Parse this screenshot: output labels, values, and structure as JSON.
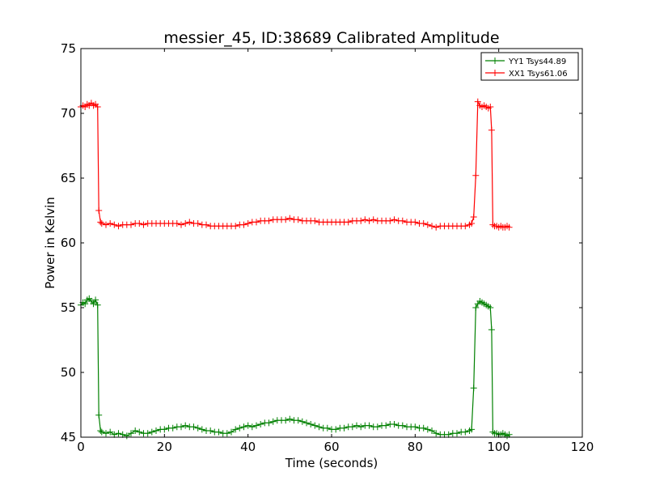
{
  "chart_data": {
    "type": "line",
    "title": "messier_45, ID:38689 Calibrated Amplitude",
    "xlabel": "Time (seconds)",
    "ylabel": "Power in Kelvin",
    "xlim": [
      0,
      120
    ],
    "ylim": [
      45,
      75
    ],
    "xticks": [
      0,
      20,
      40,
      60,
      80,
      100,
      120
    ],
    "yticks": [
      45,
      50,
      55,
      60,
      65,
      70,
      75
    ],
    "grid": false,
    "legend_position": "top-right",
    "marker": "+",
    "series": [
      {
        "name": "YY1 Tsys44.89",
        "color": "#008000",
        "x": [
          0,
          0.5,
          1,
          1.5,
          2,
          2.5,
          3,
          3.5,
          4,
          4.3,
          4.7,
          5,
          6,
          7,
          8,
          9,
          10,
          11,
          12,
          13,
          14,
          15,
          16,
          17,
          18,
          19,
          20,
          21,
          22,
          23,
          24,
          25,
          26,
          27,
          28,
          29,
          30,
          31,
          32,
          33,
          34,
          35,
          36,
          37,
          38,
          39,
          40,
          41,
          42,
          43,
          44,
          45,
          46,
          47,
          48,
          49,
          50,
          51,
          52,
          53,
          54,
          55,
          56,
          57,
          58,
          59,
          60,
          61,
          62,
          63,
          64,
          65,
          66,
          67,
          68,
          69,
          70,
          71,
          72,
          73,
          74,
          75,
          76,
          77,
          78,
          79,
          80,
          81,
          82,
          83,
          84,
          85,
          86,
          87,
          88,
          89,
          90,
          91,
          92,
          93,
          93.5,
          94,
          94.5,
          95,
          95.5,
          96,
          96.5,
          97,
          97.5,
          98,
          98.3,
          98.6,
          99,
          99.5,
          100,
          100.5,
          101,
          101.5,
          102,
          102.5
        ],
        "y": [
          55.2,
          55.4,
          55.3,
          55.6,
          55.7,
          55.5,
          55.3,
          55.6,
          55.2,
          46.7,
          45.5,
          45.4,
          45.3,
          45.4,
          45.2,
          45.3,
          45.2,
          45.1,
          45.3,
          45.5,
          45.4,
          45.3,
          45.3,
          45.4,
          45.5,
          45.6,
          45.6,
          45.7,
          45.7,
          45.8,
          45.8,
          45.9,
          45.8,
          45.8,
          45.7,
          45.6,
          45.5,
          45.5,
          45.4,
          45.4,
          45.3,
          45.3,
          45.4,
          45.6,
          45.7,
          45.8,
          45.9,
          45.8,
          45.9,
          46.0,
          46.1,
          46.1,
          46.2,
          46.3,
          46.3,
          46.3,
          46.4,
          46.3,
          46.3,
          46.2,
          46.1,
          46.0,
          45.9,
          45.8,
          45.7,
          45.7,
          45.6,
          45.6,
          45.7,
          45.7,
          45.8,
          45.8,
          45.9,
          45.8,
          45.9,
          45.9,
          45.8,
          45.8,
          45.9,
          45.9,
          46.0,
          46.0,
          45.9,
          45.9,
          45.8,
          45.8,
          45.8,
          45.7,
          45.7,
          45.6,
          45.5,
          45.3,
          45.2,
          45.2,
          45.2,
          45.3,
          45.3,
          45.4,
          45.4,
          45.5,
          45.6,
          48.8,
          55.0,
          55.3,
          55.5,
          55.4,
          55.3,
          55.2,
          55.1,
          55.0,
          53.3,
          45.4,
          45.3,
          45.3,
          45.2,
          45.2,
          45.3,
          45.2,
          45.1,
          45.2
        ]
      },
      {
        "name": "XX1 Tsys61.06",
        "color": "#ff0000",
        "x": [
          0,
          0.5,
          1,
          1.5,
          2,
          2.5,
          3,
          3.5,
          4,
          4.3,
          4.7,
          5,
          6,
          7,
          8,
          9,
          10,
          11,
          12,
          13,
          14,
          15,
          16,
          17,
          18,
          19,
          20,
          21,
          22,
          23,
          24,
          25,
          26,
          27,
          28,
          29,
          30,
          31,
          32,
          33,
          34,
          35,
          36,
          37,
          38,
          39,
          40,
          41,
          42,
          43,
          44,
          45,
          46,
          47,
          48,
          49,
          50,
          51,
          52,
          53,
          54,
          55,
          56,
          57,
          58,
          59,
          60,
          61,
          62,
          63,
          64,
          65,
          66,
          67,
          68,
          69,
          70,
          71,
          72,
          73,
          74,
          75,
          76,
          77,
          78,
          79,
          80,
          81,
          82,
          83,
          84,
          85,
          86,
          87,
          88,
          89,
          90,
          91,
          92,
          93,
          93.5,
          94,
          94.5,
          95,
          95.5,
          96,
          96.5,
          97,
          97.5,
          98,
          98.3,
          98.6,
          99,
          99.5,
          100,
          100.5,
          101,
          101.5,
          102,
          102.5
        ],
        "y": [
          70.5,
          70.6,
          70.5,
          70.7,
          70.6,
          70.8,
          70.6,
          70.7,
          70.5,
          62.5,
          61.6,
          61.5,
          61.4,
          61.5,
          61.4,
          61.3,
          61.4,
          61.4,
          61.4,
          61.5,
          61.5,
          61.4,
          61.5,
          61.5,
          61.5,
          61.5,
          61.5,
          61.5,
          61.5,
          61.5,
          61.4,
          61.5,
          61.6,
          61.5,
          61.5,
          61.4,
          61.4,
          61.3,
          61.3,
          61.3,
          61.3,
          61.3,
          61.3,
          61.3,
          61.4,
          61.4,
          61.5,
          61.6,
          61.6,
          61.7,
          61.7,
          61.7,
          61.8,
          61.8,
          61.8,
          61.8,
          61.9,
          61.8,
          61.8,
          61.7,
          61.7,
          61.7,
          61.7,
          61.6,
          61.6,
          61.6,
          61.6,
          61.6,
          61.6,
          61.6,
          61.6,
          61.7,
          61.7,
          61.7,
          61.8,
          61.7,
          61.8,
          61.7,
          61.7,
          61.7,
          61.7,
          61.8,
          61.7,
          61.7,
          61.6,
          61.6,
          61.6,
          61.5,
          61.5,
          61.4,
          61.3,
          61.2,
          61.3,
          61.3,
          61.3,
          61.3,
          61.3,
          61.3,
          61.3,
          61.4,
          61.5,
          62.0,
          65.2,
          70.9,
          70.6,
          70.5,
          70.6,
          70.5,
          70.4,
          70.5,
          68.7,
          61.4,
          61.3,
          61.3,
          61.2,
          61.3,
          61.2,
          61.2,
          61.3,
          61.2
        ]
      }
    ]
  }
}
